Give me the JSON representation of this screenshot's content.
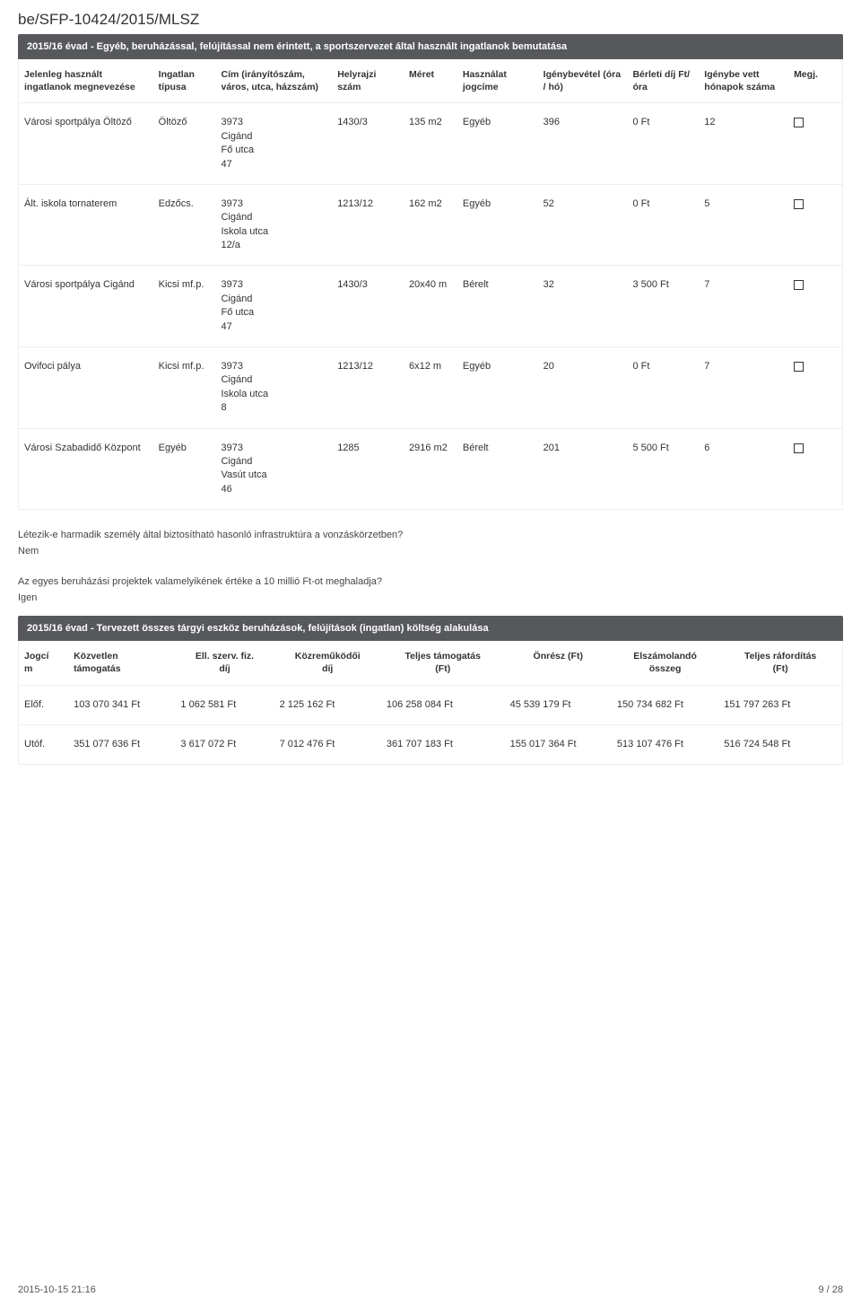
{
  "doc_id": "be/SFP-10424/2015/MLSZ",
  "section1": {
    "title": "2015/16 évad - Egyéb, beruházással, felújítással nem érintett, a sportszervezet által használt ingatlanok bemutatása",
    "headers": {
      "h1": "Jelenleg használt ingatlanok megnevezése",
      "h2": "Ingatlan típusa",
      "h3": "Cím (irányítószám, város, utca, házszám)",
      "h4": "Helyrajzi szám",
      "h5": "Méret",
      "h6": "Használat jogcíme",
      "h7": "Igénybevétel (óra / hó)",
      "h8": "Bérleti díj Ft/óra",
      "h9": "Igénybe vett hónapok száma",
      "h10": "Megj."
    },
    "rows": [
      {
        "name": "Városi sportpálya Öltöző",
        "type": "Öltöző",
        "addr": [
          "3973",
          "Cigánd",
          "Fő utca",
          "47"
        ],
        "hrsz": "1430/3",
        "size": "135 m2",
        "title": "Egyéb",
        "usage": "396",
        "rent": "0 Ft",
        "months": "12"
      },
      {
        "name": "Ált. iskola tornaterem",
        "type": "Edzőcs.",
        "addr": [
          "3973",
          "Cigánd",
          "Iskola utca",
          "12/a"
        ],
        "hrsz": "1213/12",
        "size": "162 m2",
        "title": "Egyéb",
        "usage": "52",
        "rent": "0 Ft",
        "months": "5"
      },
      {
        "name": "Városi sportpálya Cigánd",
        "type": "Kicsi mf.p.",
        "addr": [
          "3973",
          "Cigánd",
          "Fő utca",
          "47"
        ],
        "hrsz": "1430/3",
        "size": "20x40 m",
        "title": "Bérelt",
        "usage": "32",
        "rent": "3 500 Ft",
        "months": "7"
      },
      {
        "name": "Ovifoci pálya",
        "type": "Kicsi mf.p.",
        "addr": [
          "3973",
          "Cigánd",
          "Iskola utca",
          "8"
        ],
        "hrsz": "1213/12",
        "size": "6x12 m",
        "title": "Egyéb",
        "usage": "20",
        "rent": "0 Ft",
        "months": "7"
      },
      {
        "name": "Városi Szabadidő Központ",
        "type": "Egyéb",
        "addr": [
          "3973",
          "Cigánd",
          "Vasút utca",
          "46"
        ],
        "hrsz": "1285",
        "size": "2916 m2",
        "title": "Bérelt",
        "usage": "201",
        "rent": "5 500 Ft",
        "months": "6"
      }
    ]
  },
  "q1": "Létezik-e harmadik személy által biztosítható hasonló infrastruktúra a vonzáskörzetben?",
  "a1": "Nem",
  "q2": "Az egyes beruházási projektek valamelyikének értéke a 10 millió Ft-ot meghaladja?",
  "a2": "Igen",
  "section2": {
    "title": "2015/16 évad - Tervezett összes tárgyi eszköz beruházások, felújítások (ingatlan) költség alakulása",
    "headers": {
      "h1a": "Jogcí",
      "h1b": "m",
      "h2a": "Közvetlen",
      "h2b": "támogatás",
      "h3a": "Ell. szerv. fiz.",
      "h3b": "díj",
      "h4a": "Közreműködői",
      "h4b": "díj",
      "h5a": "Teljes támogatás",
      "h5b": "(Ft)",
      "h6": "Önrész (Ft)",
      "h7a": "Elszámolandó",
      "h7b": "összeg",
      "h8a": "Teljes ráfordítás",
      "h8b": "(Ft)"
    },
    "rows": [
      {
        "k": "Előf.",
        "c1": "103 070 341 Ft",
        "c2": "1 062 581 Ft",
        "c3": "2 125 162 Ft",
        "c4": "106 258 084 Ft",
        "c5": "45 539 179 Ft",
        "c6": "150 734 682 Ft",
        "c7": "151 797 263 Ft"
      },
      {
        "k": "Utóf.",
        "c1": "351 077 636 Ft",
        "c2": "3 617 072 Ft",
        "c3": "7 012 476 Ft",
        "c4": "361 707 183 Ft",
        "c5": "155 017 364 Ft",
        "c6": "513 107 476 Ft",
        "c7": "516 724 548 Ft"
      }
    ]
  },
  "footer": {
    "left": "2015-10-15 21:16",
    "right": "9 / 28"
  }
}
